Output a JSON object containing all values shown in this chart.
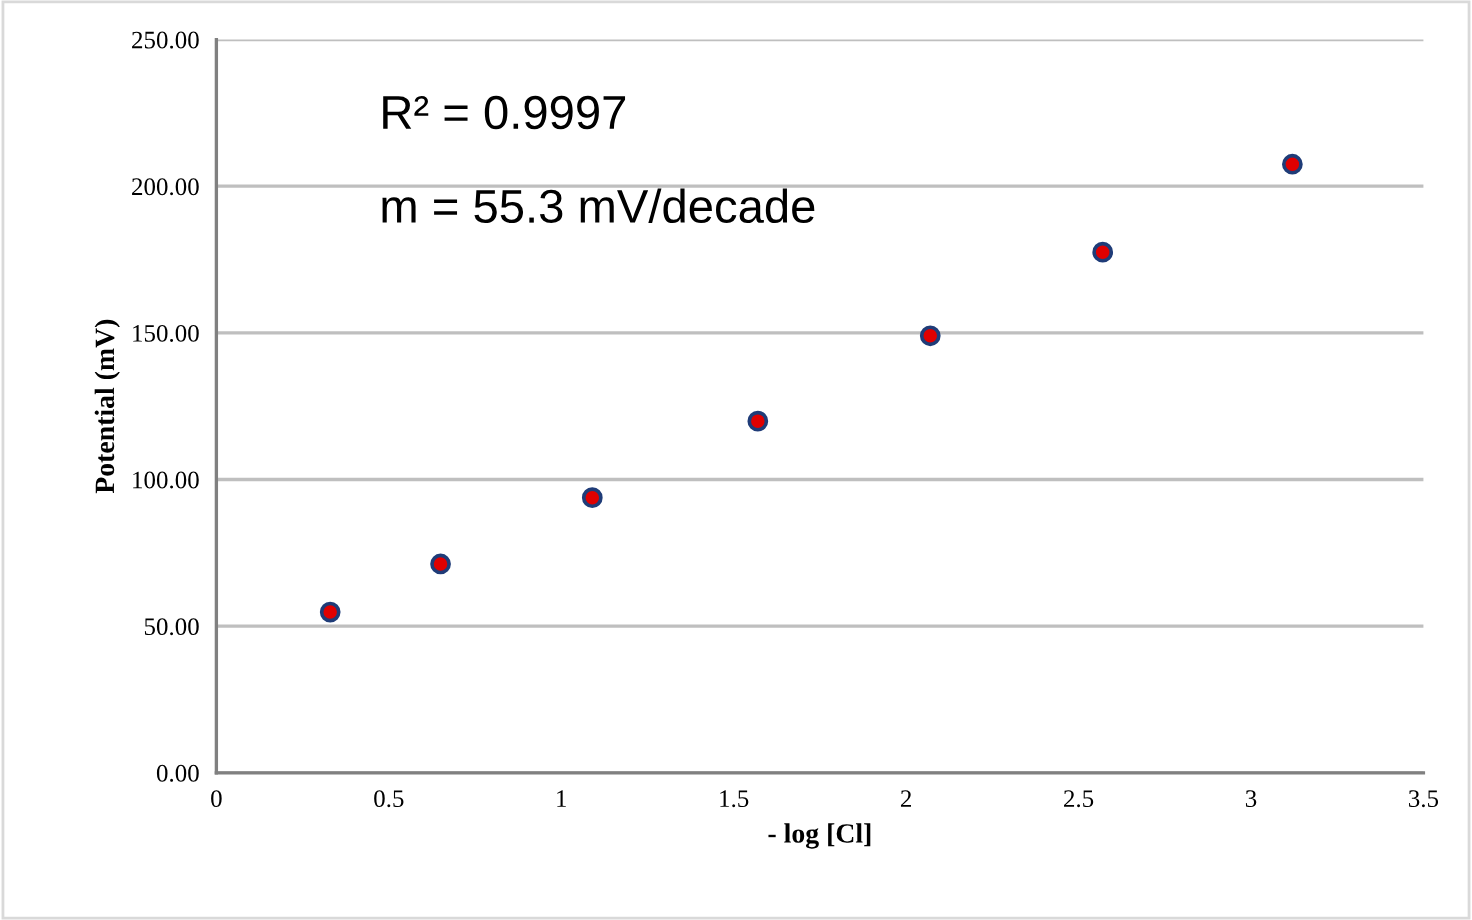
{
  "chart_data": {
    "type": "scatter",
    "xlabel": "- log [Cl]",
    "ylabel": "Potential (mV)",
    "x": [
      0.33,
      0.65,
      1.09,
      1.57,
      2.07,
      2.57,
      3.12
    ],
    "series": [
      {
        "color": "#e00000",
        "values": [
          54.8,
          71.2,
          93.8,
          119.9,
          149.0,
          177.5,
          207.5
        ]
      }
    ],
    "xlim": [
      0,
      3.5
    ],
    "xticks": [
      0,
      0.5,
      1,
      1.5,
      2,
      2.5,
      3,
      3.5
    ],
    "ylim": [
      0,
      250
    ],
    "yticks": [
      {
        "value": 0,
        "label": "0.00"
      },
      {
        "value": 50,
        "label": "50.00"
      },
      {
        "value": 100,
        "label": "100.00"
      },
      {
        "value": 150,
        "label": "150.00"
      },
      {
        "value": 200,
        "label": "200.00"
      },
      {
        "value": 250,
        "label": "250.00"
      }
    ],
    "grid": "y",
    "marker": "circle",
    "legend": false,
    "annotations": [
      "R² = 0.9997",
      "m = 55.3 mV/decade"
    ]
  }
}
